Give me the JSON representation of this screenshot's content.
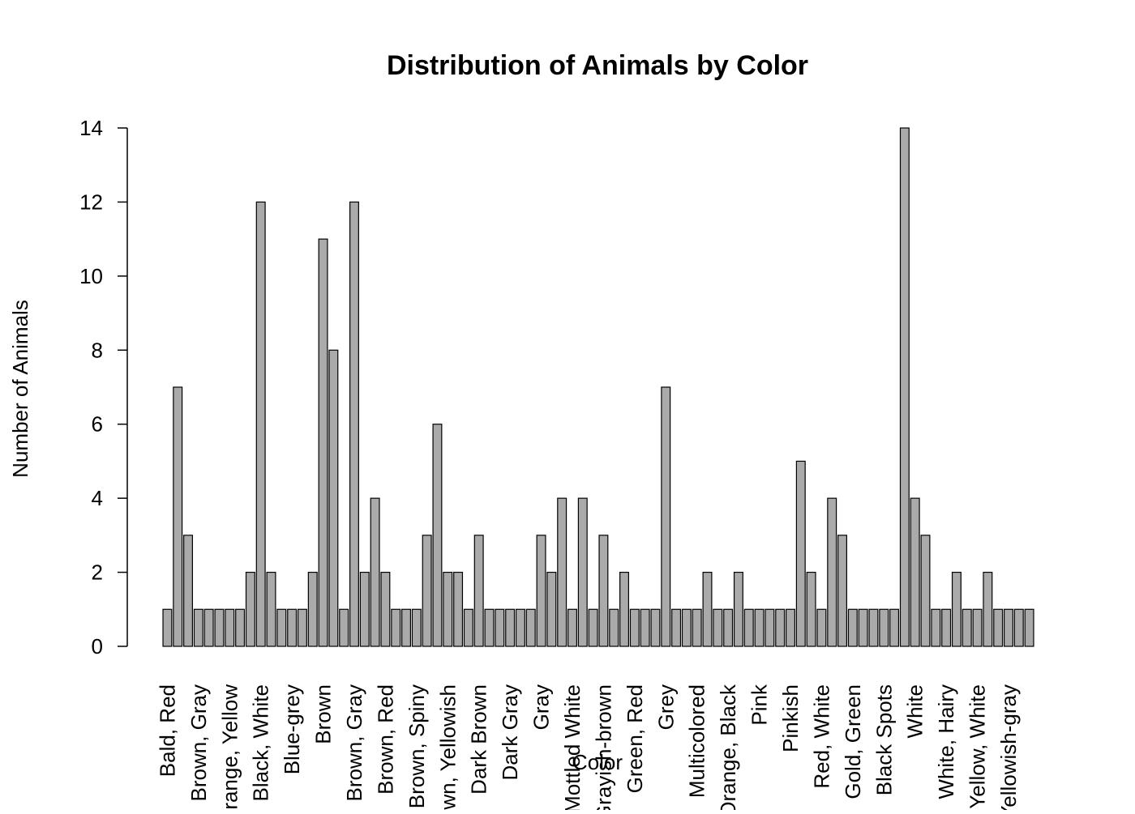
{
  "chart_data": {
    "type": "bar",
    "title": "Distribution of Animals by Color",
    "x_label": "Color",
    "y_label": "Number of Animals",
    "categories": [
      "Bald, Red",
      null,
      null,
      "Brown, Gray",
      null,
      null,
      "Orange, Yellow",
      null,
      null,
      "Black, White",
      null,
      null,
      "Blue-grey",
      null,
      null,
      "Brown",
      null,
      null,
      "Brown, Gray",
      null,
      null,
      "Brown, Red",
      null,
      null,
      "Brown, Spiny",
      null,
      null,
      "Brown, Yellowish",
      null,
      null,
      "Dark Brown",
      null,
      null,
      "Dark Gray",
      null,
      null,
      "Gray",
      null,
      null,
      "Mottled White",
      null,
      null,
      "Grayish-brown",
      null,
      null,
      "Green, Red",
      null,
      null,
      "Grey",
      null,
      null,
      "Multicolored",
      null,
      null,
      "Orange, Black",
      null,
      null,
      "Pink",
      null,
      null,
      "Pinkish",
      null,
      null,
      "Red, White",
      null,
      null,
      "Gold, Green",
      null,
      null,
      "Black Spots",
      null,
      null,
      "White",
      null,
      null,
      "White, Hairy",
      null,
      null,
      "Yellow, White",
      null,
      null,
      "Yellowish-gray",
      null,
      null
    ],
    "values": [
      1,
      7,
      3,
      1,
      1,
      1,
      1,
      1,
      2,
      12,
      2,
      1,
      1,
      1,
      2,
      11,
      8,
      1,
      12,
      2,
      4,
      2,
      1,
      1,
      1,
      3,
      6,
      2,
      2,
      1,
      3,
      1,
      1,
      1,
      1,
      1,
      3,
      2,
      4,
      1,
      4,
      1,
      3,
      1,
      2,
      1,
      1,
      1,
      7,
      1,
      1,
      1,
      2,
      1,
      1,
      2,
      1,
      1,
      1,
      1,
      1,
      5,
      2,
      1,
      4,
      3,
      1,
      1,
      1,
      1,
      1,
      14,
      4,
      3,
      1,
      1,
      2,
      1,
      1,
      2,
      1,
      1,
      1,
      1
    ],
    "color": "#aaaaaa",
    "ylim": [
      0,
      14
    ],
    "yticks": [
      0,
      2,
      4,
      6,
      8,
      10,
      12,
      14
    ]
  }
}
